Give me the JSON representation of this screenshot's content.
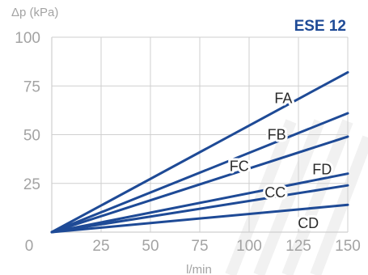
{
  "chart_data": {
    "type": "line",
    "title": "ESE 12",
    "ylabel": "Δp (kPa)",
    "xlabel": "l/min",
    "xlim": [
      0,
      150
    ],
    "ylim": [
      0,
      100
    ],
    "xticks": [
      "0",
      "25",
      "50",
      "75",
      "100",
      "125",
      "150"
    ],
    "yticks": [
      "100",
      "75",
      "50",
      "25"
    ],
    "grid": true,
    "series": [
      {
        "name": "FA",
        "x": [
          0,
          150
        ],
        "y": [
          0,
          82
        ]
      },
      {
        "name": "FB",
        "x": [
          0,
          150
        ],
        "y": [
          0,
          61
        ]
      },
      {
        "name": "FC",
        "x": [
          0,
          150
        ],
        "y": [
          0,
          49
        ]
      },
      {
        "name": "FD",
        "x": [
          0,
          150
        ],
        "y": [
          0,
          30
        ]
      },
      {
        "name": "CC",
        "x": [
          0,
          150
        ],
        "y": [
          0,
          24
        ]
      },
      {
        "name": "CD",
        "x": [
          0,
          150
        ],
        "y": [
          0,
          14
        ]
      }
    ],
    "colors": {
      "line": "#1e4a96",
      "title": "#1e4a96",
      "grid": "#cfcfcf",
      "axis_text": "#a3a3a3",
      "series_label": "#2a2a2a"
    }
  }
}
